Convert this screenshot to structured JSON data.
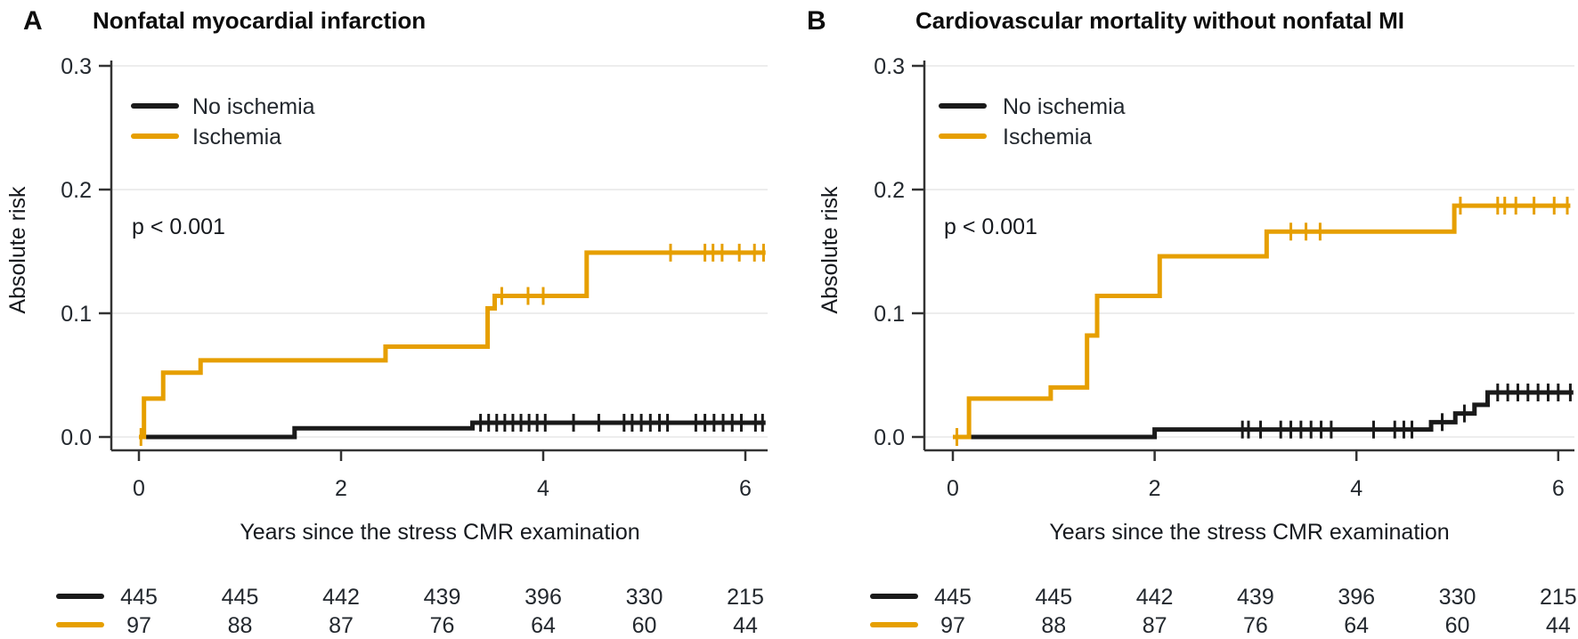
{
  "figure": {
    "background": "#ffffff"
  },
  "colors": {
    "no_ischemia": "#1a1a1a",
    "ischemia": "#e69f00",
    "grid": "#e7e7e7",
    "axis": "#333333"
  },
  "chart_data": [
    {
      "type": "line",
      "panel": "A",
      "title": "Nonfatal myocardial infarction",
      "xlabel": "Years since the stress CMR examination",
      "ylabel": "Absolute risk",
      "pvalue": "p < 0.001",
      "xlim": [
        0,
        6.3
      ],
      "ylim": [
        0,
        0.3
      ],
      "xticks": [
        0,
        2,
        4,
        6
      ],
      "ytick_labels": [
        "0.0",
        "0.1",
        "0.2",
        "0.3"
      ],
      "grid": "horizontal",
      "legend_position": "inside-top-left",
      "legend": [
        {
          "name": "No ischemia",
          "color": "#1a1a1a"
        },
        {
          "name": "Ischemia",
          "color": "#e69f00"
        }
      ],
      "series": [
        {
          "name": "No ischemia",
          "color": "#1a1a1a",
          "start": [
            0,
            0
          ],
          "steps": [
            [
              1.54,
              0.007
            ],
            [
              3.3,
              0.0115
            ]
          ],
          "end_x": 6.2,
          "censor_times": [
            3.38,
            3.46,
            3.54,
            3.62,
            3.7,
            3.78,
            3.86,
            3.94,
            4.02,
            4.3,
            4.55,
            4.8,
            4.88,
            4.97,
            5.06,
            5.15,
            5.23,
            5.51,
            5.6,
            5.69,
            5.78,
            5.87,
            5.96,
            6.1,
            6.17
          ]
        },
        {
          "name": "Ischemia",
          "color": "#e69f00",
          "start": [
            0,
            0
          ],
          "steps": [
            [
              0.05,
              0.031
            ],
            [
              0.24,
              0.052
            ],
            [
              0.61,
              0.062
            ],
            [
              2.44,
              0.073
            ],
            [
              3.45,
              0.104
            ],
            [
              3.52,
              0.114
            ],
            [
              4.43,
              0.149
            ]
          ],
          "end_x": 6.2,
          "censor_times": [
            0.02,
            3.59,
            3.85,
            4.0,
            5.26,
            5.6,
            5.68,
            5.77,
            5.94,
            6.09,
            6.18
          ]
        }
      ],
      "risk_table": {
        "times": [
          0,
          1,
          2,
          3,
          4,
          5,
          6
        ],
        "rows": [
          {
            "name": "No ischemia",
            "color": "#1a1a1a",
            "counts": [
              445,
              445,
              442,
              439,
              396,
              330,
              215
            ]
          },
          {
            "name": "Ischemia",
            "color": "#e69f00",
            "counts": [
              97,
              88,
              87,
              76,
              64,
              60,
              44
            ]
          }
        ]
      }
    },
    {
      "type": "line",
      "panel": "B",
      "title": "Cardiovascular mortality without nonfatal MI",
      "xlabel": "Years since the stress CMR examination",
      "ylabel": "Absolute risk",
      "pvalue": "p < 0.001",
      "xlim": [
        0,
        6.3
      ],
      "ylim": [
        0,
        0.3
      ],
      "xticks": [
        0,
        2,
        4,
        6
      ],
      "ytick_labels": [
        "0.0",
        "0.1",
        "0.2",
        "0.3"
      ],
      "grid": "horizontal",
      "legend_position": "inside-top-left",
      "legend": [
        {
          "name": "No ischemia",
          "color": "#1a1a1a"
        },
        {
          "name": "Ischemia",
          "color": "#e69f00"
        }
      ],
      "series": [
        {
          "name": "No ischemia",
          "color": "#1a1a1a",
          "start": [
            0,
            0
          ],
          "steps": [
            [
              2.0,
              0.006
            ],
            [
              4.74,
              0.012
            ],
            [
              4.98,
              0.019
            ],
            [
              5.17,
              0.026
            ],
            [
              5.3,
              0.036
            ]
          ],
          "end_x": 6.15,
          "censor_times": [
            2.87,
            2.93,
            3.05,
            3.25,
            3.35,
            3.45,
            3.55,
            3.65,
            3.75,
            4.17,
            4.38,
            4.47,
            4.55,
            4.85,
            5.07,
            5.4,
            5.5,
            5.6,
            5.7,
            5.8,
            5.9,
            6.0,
            6.12
          ]
        },
        {
          "name": "Ischemia",
          "color": "#e69f00",
          "start": [
            0,
            0
          ],
          "steps": [
            [
              0.16,
              0.031
            ],
            [
              0.97,
              0.04
            ],
            [
              1.33,
              0.082
            ],
            [
              1.43,
              0.114
            ],
            [
              2.05,
              0.146
            ],
            [
              3.11,
              0.166
            ],
            [
              4.97,
              0.187
            ]
          ],
          "end_x": 6.12,
          "censor_times": [
            0.04,
            3.35,
            3.5,
            3.64,
            5.03,
            5.4,
            5.47,
            5.58,
            5.76,
            5.96,
            6.09
          ]
        }
      ],
      "risk_table": {
        "times": [
          0,
          1,
          2,
          3,
          4,
          5,
          6
        ],
        "rows": [
          {
            "name": "No ischemia",
            "color": "#1a1a1a",
            "counts": [
              445,
              445,
              442,
              439,
              396,
              330,
              215
            ]
          },
          {
            "name": "Ischemia",
            "color": "#e69f00",
            "counts": [
              97,
              88,
              87,
              76,
              64,
              60,
              44
            ]
          }
        ]
      }
    }
  ]
}
